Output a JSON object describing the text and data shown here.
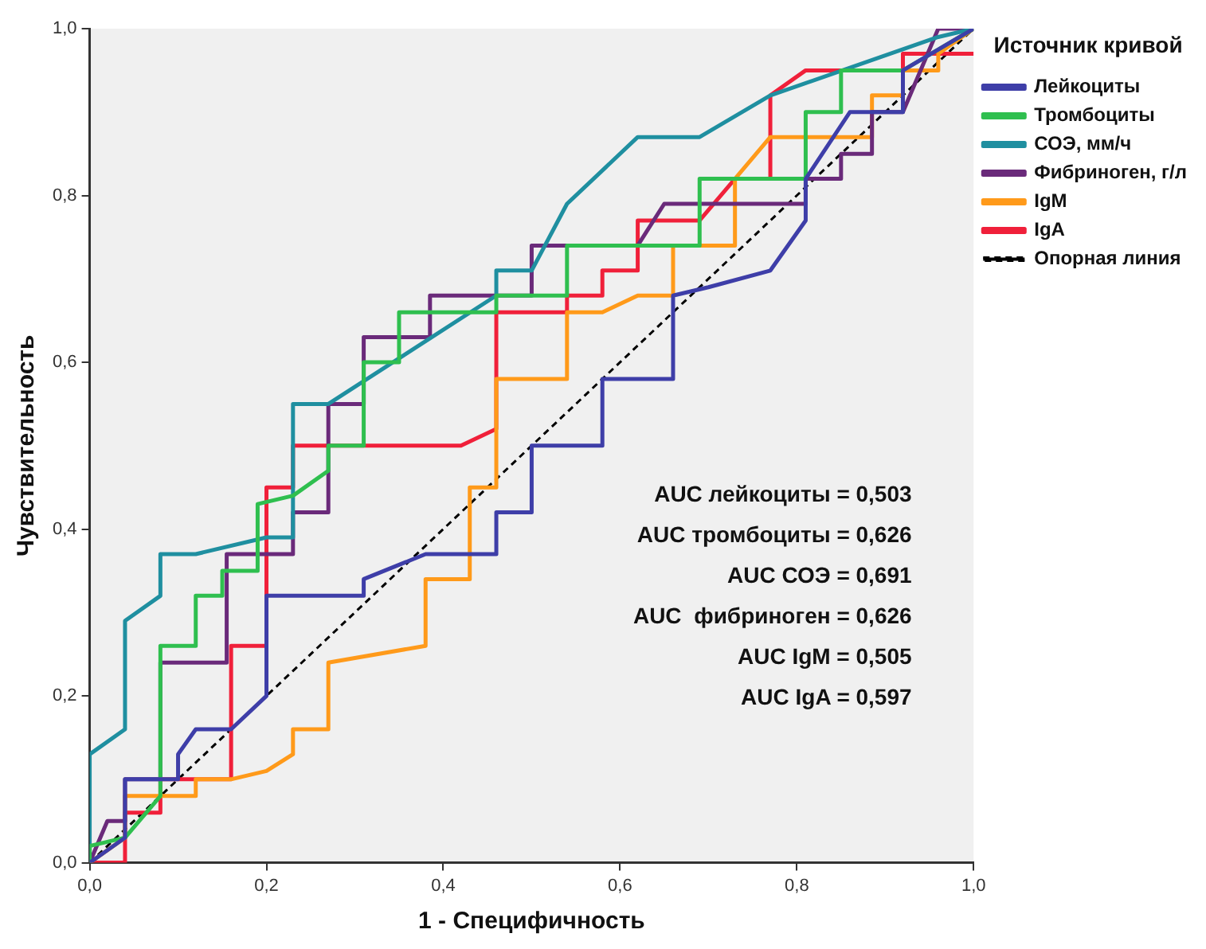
{
  "chart_data": {
    "type": "line",
    "xlabel": "1 - Специфичность",
    "ylabel": "Чувствительность",
    "legend_title": "Источник кривой",
    "legend": "right",
    "grid": false,
    "marker": "none",
    "line_style": "solid",
    "xlim": [
      0,
      1
    ],
    "ylim": [
      0,
      1
    ],
    "xticks": [
      {
        "value": 0,
        "label": "0,0"
      },
      {
        "value": 0.2,
        "label": "0,2"
      },
      {
        "value": 0.4,
        "label": "0,4"
      },
      {
        "value": 0.6,
        "label": "0,6"
      },
      {
        "value": 0.8,
        "label": "0,8"
      },
      {
        "value": 1,
        "label": "1,0"
      }
    ],
    "yticks": [
      {
        "value": 0,
        "label": "0,0"
      },
      {
        "value": 0.2,
        "label": "0,2"
      },
      {
        "value": 0.4,
        "label": "0,4"
      },
      {
        "value": 0.6,
        "label": "0,6"
      },
      {
        "value": 0.8,
        "label": "0,8"
      },
      {
        "value": 1,
        "label": "1,0"
      }
    ],
    "series": [
      {
        "name": "Лейкоциты",
        "color": "#3e3ea8",
        "x": [
          0,
          0.04,
          0.04,
          0.1,
          0.1,
          0.12,
          0.16,
          0.2,
          0.2,
          0.31,
          0.31,
          0.38,
          0.46,
          0.46,
          0.5,
          0.5,
          0.58,
          0.58,
          0.66,
          0.66,
          0.7,
          0.77,
          0.81,
          0.81,
          0.86,
          0.92,
          0.92,
          1
        ],
        "values": [
          0,
          0.03,
          0.1,
          0.1,
          0.13,
          0.16,
          0.16,
          0.2,
          0.32,
          0.32,
          0.34,
          0.37,
          0.37,
          0.42,
          0.42,
          0.5,
          0.5,
          0.58,
          0.58,
          0.68,
          0.69,
          0.71,
          0.77,
          0.82,
          0.9,
          0.9,
          0.95,
          1
        ]
      },
      {
        "name": "Тромбоциты",
        "color": "#2fbf4f",
        "x": [
          0,
          0,
          0.04,
          0.08,
          0.08,
          0.12,
          0.12,
          0.15,
          0.15,
          0.19,
          0.19,
          0.23,
          0.27,
          0.27,
          0.31,
          0.31,
          0.35,
          0.35,
          0.46,
          0.46,
          0.54,
          0.54,
          0.69,
          0.69,
          0.81,
          0.81,
          0.85,
          0.85,
          0.92,
          1
        ],
        "values": [
          0,
          0.02,
          0.03,
          0.08,
          0.26,
          0.26,
          0.32,
          0.32,
          0.35,
          0.35,
          0.43,
          0.44,
          0.47,
          0.5,
          0.5,
          0.6,
          0.6,
          0.66,
          0.66,
          0.68,
          0.68,
          0.74,
          0.74,
          0.82,
          0.82,
          0.9,
          0.9,
          0.95,
          0.95,
          1
        ]
      },
      {
        "name": "СОЭ, мм/ч",
        "color": "#1f8fa0",
        "x": [
          0,
          0,
          0.04,
          0.04,
          0.08,
          0.08,
          0.12,
          0.2,
          0.23,
          0.23,
          0.27,
          0.46,
          0.46,
          0.5,
          0.54,
          0.62,
          0.69,
          0.77,
          0.96,
          1
        ],
        "values": [
          0,
          0.13,
          0.16,
          0.29,
          0.32,
          0.37,
          0.37,
          0.39,
          0.39,
          0.55,
          0.55,
          0.68,
          0.71,
          0.71,
          0.79,
          0.87,
          0.87,
          0.92,
          0.99,
          1
        ]
      },
      {
        "name": "Фибриноген, г/л",
        "color": "#6a2a7a",
        "x": [
          0,
          0.02,
          0.04,
          0.04,
          0.08,
          0.08,
          0.155,
          0.155,
          0.23,
          0.23,
          0.27,
          0.27,
          0.31,
          0.31,
          0.385,
          0.385,
          0.5,
          0.5,
          0.62,
          0.65,
          0.81,
          0.81,
          0.85,
          0.85,
          0.885,
          0.885,
          0.92,
          0.96,
          1
        ],
        "values": [
          0,
          0.05,
          0.05,
          0.1,
          0.1,
          0.24,
          0.24,
          0.37,
          0.37,
          0.42,
          0.42,
          0.55,
          0.55,
          0.63,
          0.63,
          0.68,
          0.68,
          0.74,
          0.74,
          0.79,
          0.79,
          0.82,
          0.82,
          0.85,
          0.85,
          0.9,
          0.9,
          1,
          1
        ]
      },
      {
        "name": "IgM",
        "color": "#ff9a1a",
        "x": [
          0,
          0.04,
          0.04,
          0.12,
          0.12,
          0.16,
          0.2,
          0.23,
          0.23,
          0.27,
          0.27,
          0.38,
          0.38,
          0.43,
          0.43,
          0.46,
          0.46,
          0.54,
          0.54,
          0.58,
          0.62,
          0.66,
          0.66,
          0.73,
          0.73,
          0.77,
          0.885,
          0.885,
          0.92,
          0.92,
          0.96,
          0.96,
          1
        ],
        "values": [
          0,
          0.03,
          0.08,
          0.08,
          0.1,
          0.1,
          0.11,
          0.13,
          0.16,
          0.16,
          0.24,
          0.26,
          0.34,
          0.34,
          0.45,
          0.45,
          0.58,
          0.58,
          0.66,
          0.66,
          0.68,
          0.68,
          0.74,
          0.74,
          0.82,
          0.87,
          0.87,
          0.92,
          0.92,
          0.95,
          0.95,
          0.97,
          1
        ]
      },
      {
        "name": "IgA",
        "color": "#f0203a",
        "x": [
          0,
          0.04,
          0.04,
          0.08,
          0.08,
          0.16,
          0.16,
          0.2,
          0.2,
          0.23,
          0.23,
          0.42,
          0.46,
          0.46,
          0.54,
          0.54,
          0.58,
          0.58,
          0.62,
          0.62,
          0.69,
          0.73,
          0.77,
          0.77,
          0.81,
          0.92,
          0.92,
          1
        ],
        "values": [
          0,
          0,
          0.06,
          0.06,
          0.1,
          0.1,
          0.26,
          0.26,
          0.45,
          0.45,
          0.5,
          0.5,
          0.52,
          0.66,
          0.66,
          0.68,
          0.68,
          0.71,
          0.71,
          0.77,
          0.77,
          0.82,
          0.82,
          0.92,
          0.95,
          0.95,
          0.97,
          0.97
        ]
      },
      {
        "name": "Опорная линия",
        "color": "#000000",
        "line_style": "dashed",
        "x": [
          0,
          1
        ],
        "values": [
          0,
          1
        ]
      }
    ],
    "annotations": [
      "AUC лейкоциты = 0,503",
      "AUC тромбоциты = 0,626",
      "AUC СОЭ = 0,691",
      "AUC  фибриноген = 0,626",
      "AUC IgM = 0,505",
      "AUC IgA = 0,597"
    ]
  }
}
